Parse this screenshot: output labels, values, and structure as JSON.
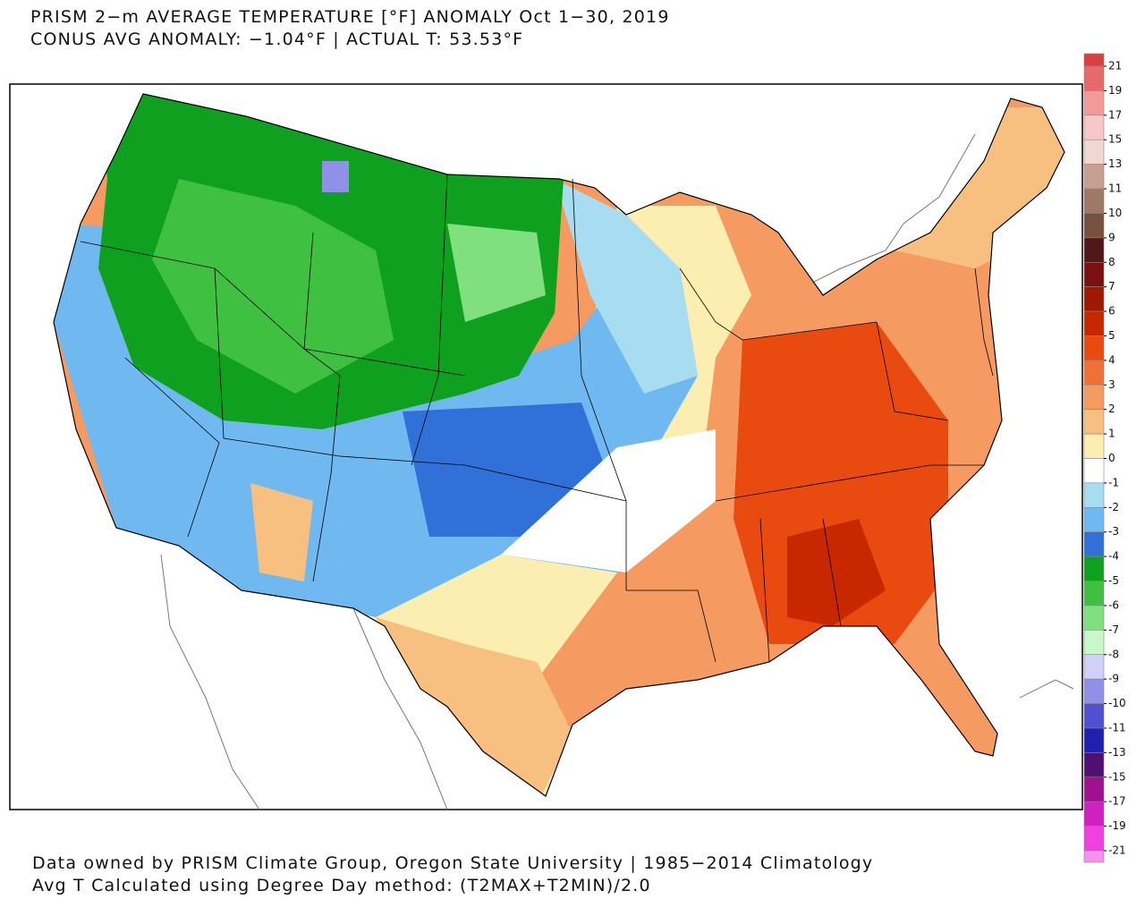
{
  "header": {
    "title": "PRISM 2−m AVERAGE TEMPERATURE [°F] ANOMALY Oct 1−30, 2019",
    "subtitle": "CONUS AVG ANOMALY: −1.04°F | ACTUAL T: 53.53°F"
  },
  "footer": {
    "lines": [
      "Data owned by PRISM Climate Group, Oregon State University | 1985−2014 Climatology",
      "Avg T Calculated using Degree Day method: (T2MAX+T2MIN)/2.0"
    ]
  },
  "colorbar": {
    "labels": [
      21,
      19,
      17,
      15,
      13,
      11,
      10,
      9,
      8,
      7,
      6,
      5,
      4,
      3,
      2,
      1,
      0,
      -1,
      -2,
      -3,
      -4,
      -5,
      -6,
      -7,
      -8,
      -9,
      -10,
      -11,
      -13,
      -15,
      -17,
      -19,
      -21
    ],
    "colors": [
      "#d94040",
      "#e66a6a",
      "#f09a9a",
      "#f8c8c8",
      "#f0d8d0",
      "#c8a090",
      "#a07868",
      "#785040",
      "#501818",
      "#7a1010",
      "#a01800",
      "#c82800",
      "#e84a10",
      "#f07038",
      "#f59a60",
      "#f8c080",
      "#fbeeb0",
      "#ffffff",
      "#a8dcf0",
      "#70b8f0",
      "#3070d8",
      "#10a020",
      "#40c040",
      "#80e080",
      "#c8f8c8",
      "#d0d0f8",
      "#9090e8",
      "#5050d0",
      "#2020b0",
      "#501070",
      "#a01090",
      "#d020c0",
      "#f040e0",
      "#f890f0"
    ]
  }
}
